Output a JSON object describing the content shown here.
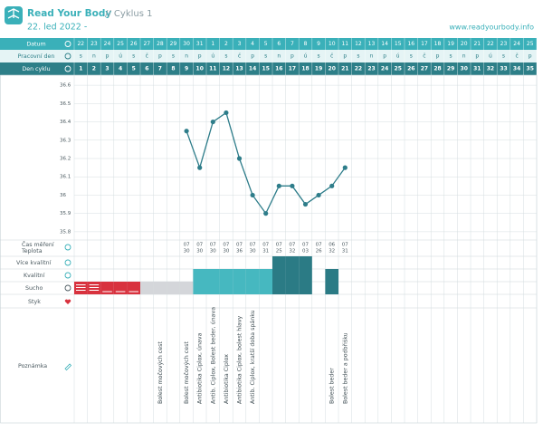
{
  "header": {
    "brand": "Read Your Body",
    "cycle": "// Cyklus 1",
    "date": "22. led 2022 -",
    "url": "www.readyourbody.info"
  },
  "row_labels": {
    "date": "Datum",
    "weekday": "Pracovní den",
    "cycle_day": "Den cyklu",
    "time": "Čas měření",
    "temperature": "Teplota",
    "more_quality": "Více kvalitní",
    "quality": "Kvalitní",
    "dry": "Sucho",
    "intercourse": "Styk",
    "notes": "Poznámka"
  },
  "chart_data": {
    "type": "line",
    "dates": [
      22,
      23,
      24,
      25,
      26,
      27,
      28,
      29,
      30,
      31,
      1,
      2,
      3,
      4,
      5,
      6,
      7,
      8,
      9,
      10,
      11,
      12,
      13,
      14,
      15,
      16,
      17,
      18,
      19,
      20,
      21,
      22,
      23,
      24,
      25
    ],
    "weekdays": [
      "s",
      "n",
      "p",
      "ú",
      "s",
      "č",
      "p",
      "s",
      "n",
      "p",
      "ú",
      "s",
      "č",
      "p",
      "s",
      "n",
      "p",
      "ú",
      "s",
      "č",
      "p",
      "s",
      "n",
      "p",
      "ú",
      "s",
      "č",
      "p",
      "s",
      "n",
      "p",
      "ú",
      "s",
      "č",
      "p"
    ],
    "categories": [
      1,
      2,
      3,
      4,
      5,
      6,
      7,
      8,
      9,
      10,
      11,
      12,
      13,
      14,
      15,
      16,
      17,
      18,
      19,
      20,
      21,
      22,
      23,
      24,
      25,
      26,
      27,
      28,
      29,
      30,
      31,
      32,
      33,
      34,
      35
    ],
    "series": [
      {
        "name": "Teplota",
        "color": "#2e7d8a",
        "values": [
          null,
          null,
          null,
          null,
          null,
          null,
          null,
          null,
          36.35,
          36.15,
          36.4,
          36.45,
          36.2,
          36.0,
          35.9,
          36.05,
          36.05,
          35.95,
          36.0,
          36.05,
          36.15,
          null,
          null,
          null,
          null,
          null,
          null,
          null,
          null,
          null,
          null,
          null,
          null,
          null,
          null
        ]
      }
    ],
    "ylim": [
      35.75,
      36.65
    ],
    "yticks": [
      35.8,
      35.9,
      36.0,
      36.1,
      36.2,
      36.3,
      36.4,
      36.5,
      36.6
    ],
    "times": [
      null,
      null,
      null,
      null,
      null,
      null,
      null,
      null,
      {
        "hour": "07",
        "minute": "30"
      },
      {
        "hour": "07",
        "minute": "30"
      },
      {
        "hour": "07",
        "minute": "30"
      },
      {
        "hour": "07",
        "minute": "30"
      },
      {
        "hour": "07",
        "minute": "36"
      },
      {
        "hour": "07",
        "minute": "30"
      },
      {
        "hour": "07",
        "minute": "31"
      },
      {
        "hour": "07",
        "minute": "25"
      },
      {
        "hour": "07",
        "minute": "32"
      },
      {
        "hour": "07",
        "minute": "03"
      },
      {
        "hour": "07",
        "minute": "26"
      },
      {
        "hour": "06",
        "minute": "32"
      },
      {
        "hour": "07",
        "minute": "31"
      },
      null,
      null,
      null,
      null,
      null,
      null,
      null,
      null,
      null,
      null,
      null,
      null,
      null,
      null
    ],
    "mucus": [
      1,
      1,
      1,
      1,
      1,
      1,
      1,
      1,
      1,
      2,
      2,
      2,
      2,
      2,
      2,
      3,
      3,
      3,
      null,
      2,
      null,
      null,
      null,
      null,
      null,
      null,
      null,
      null,
      null,
      null,
      null,
      null,
      null,
      null,
      null
    ],
    "mucus_colors": [
      "#d8323e",
      "#d8323e",
      "#d8323e",
      "#d8323e",
      "#d8323e",
      "#d4d6da",
      "#d4d6da",
      "#d4d6da",
      "#d4d6da",
      "#46b8c0",
      "#46b8c0",
      "#46b8c0",
      "#46b8c0",
      "#46b8c0",
      "#46b8c0",
      "#2b7b85",
      "#2b7b85",
      "#2b7b85",
      null,
      "#2b7b85",
      null,
      null,
      null,
      null,
      null,
      null,
      null,
      null,
      null,
      null,
      null,
      null,
      null,
      null,
      null
    ],
    "bleeding": [
      3,
      3,
      1,
      1,
      1,
      null,
      null,
      null,
      null,
      null,
      null,
      null,
      null,
      null,
      null,
      null,
      null,
      null,
      null,
      null,
      null,
      null,
      null,
      null,
      null,
      null,
      null,
      null,
      null,
      null,
      null,
      null,
      null,
      null,
      null
    ],
    "notes": [
      null,
      null,
      null,
      null,
      null,
      null,
      "Bolest močových cest",
      null,
      "Bolest močových cest",
      "Antibiotika Ciplox, únava",
      "Antib. Ciplox, Bolest beder, únava",
      "Antibiotika Ciplox",
      "Antibiotika Ciplox, bolest hlavy",
      "Antib. Ciplox, kratší doba spánku",
      null,
      null,
      null,
      null,
      null,
      "Bolest beder",
      "Bolest beder a podbřišku",
      null,
      null,
      null,
      null,
      null,
      null,
      null,
      null,
      null,
      null,
      null,
      null,
      null,
      null
    ]
  }
}
